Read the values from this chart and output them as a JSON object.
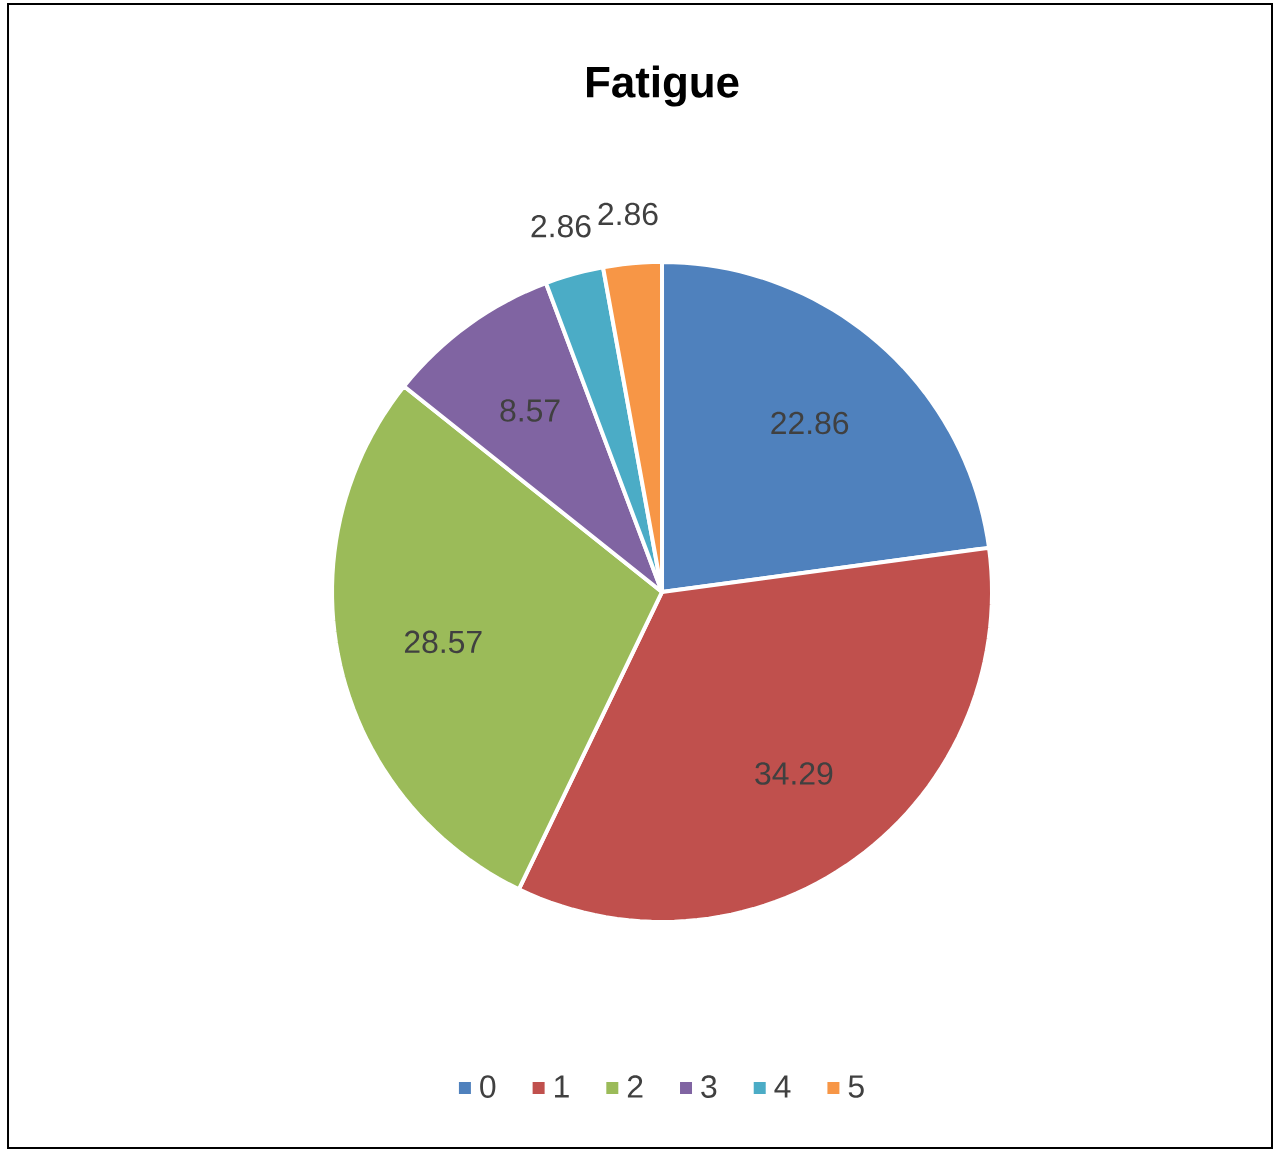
{
  "chart_data": {
    "type": "pie",
    "title": "Fatigue",
    "categories": [
      "0",
      "1",
      "2",
      "3",
      "4",
      "5"
    ],
    "values": [
      22.86,
      34.29,
      28.57,
      8.57,
      2.86,
      2.86
    ],
    "colors": [
      "#4f81bd",
      "#c0504d",
      "#9bbb59",
      "#8064a2",
      "#4bacc6",
      "#f79646"
    ],
    "data_labels": true,
    "legend": "bottom"
  }
}
